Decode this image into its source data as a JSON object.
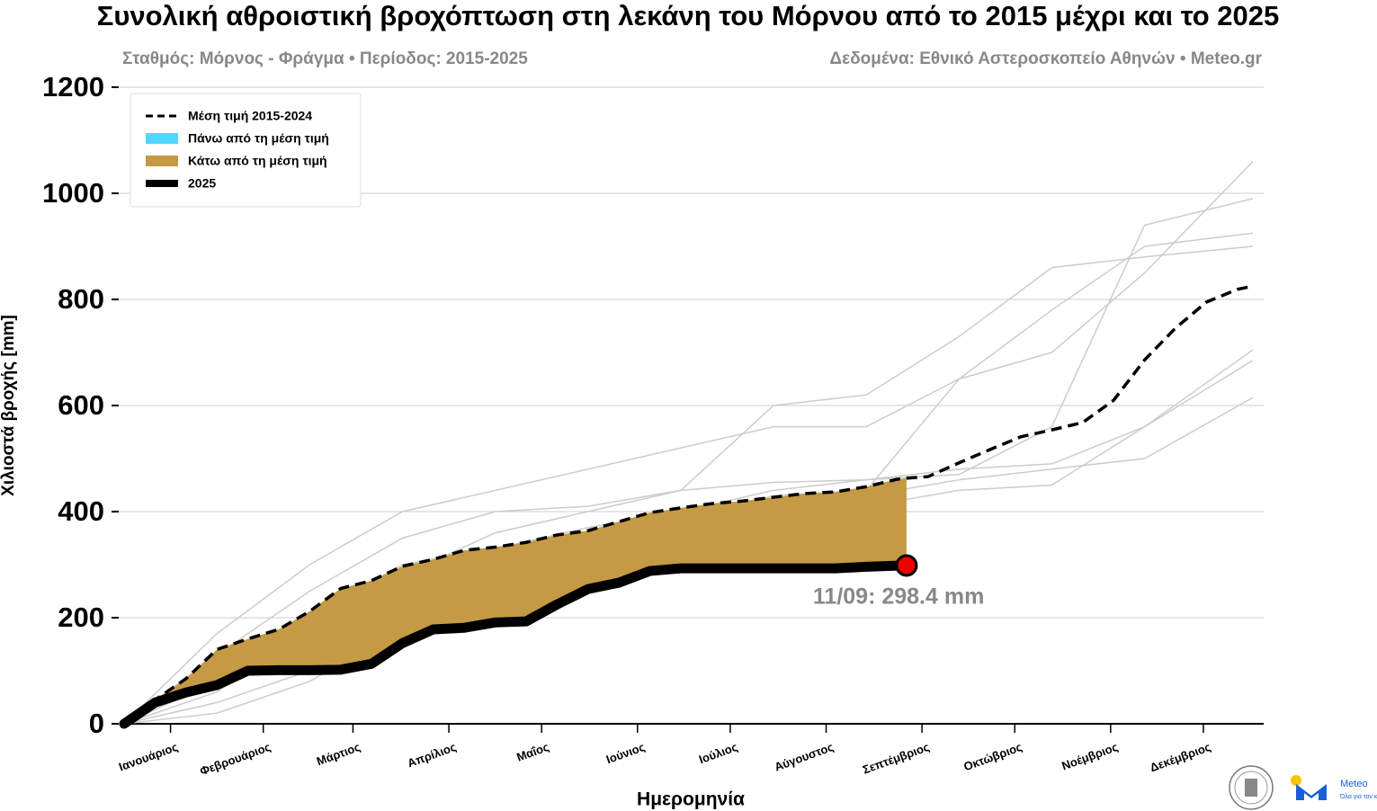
{
  "chart_data": {
    "type": "line",
    "title": "Συνολική αθροιστική βροχόπτωση στη λεκάνη του Μόρνου από το 2015 μέχρι και το 2025",
    "subtitle": "Σταθμός: Μόρνος - Φράγμα • Περίοδος: 2015-2025",
    "source": "Δεδομένα: Εθνικό Αστεροσκοπείο Αθηνών • Meteo.gr",
    "xlabel": "Ημερομηνία",
    "ylabel": "Χιλιοστά βροχής [mm]",
    "xlim": [
      0,
      365
    ],
    "ylim": [
      0,
      1200
    ],
    "xticks": [
      {
        "value": 15,
        "label": "Ιανουάριος"
      },
      {
        "value": 45,
        "label": "Φεβρουάριος"
      },
      {
        "value": 74,
        "label": "Μάρτιος"
      },
      {
        "value": 105,
        "label": "Απρίλιος"
      },
      {
        "value": 135,
        "label": "Μαΐος"
      },
      {
        "value": 166,
        "label": "Ιούνιος"
      },
      {
        "value": 196,
        "label": "Ιούλιος"
      },
      {
        "value": 227,
        "label": "Αύγουστος"
      },
      {
        "value": 258,
        "label": "Σεπτέμβριος"
      },
      {
        "value": 288,
        "label": "Οκτώβριος"
      },
      {
        "value": 319,
        "label": "Νοέμβριος"
      },
      {
        "value": 349,
        "label": "Δεκέμβριος"
      }
    ],
    "yticks": [
      0,
      200,
      400,
      600,
      800,
      1000,
      1200
    ],
    "grid": true,
    "legend": "upper left",
    "series": [
      {
        "name": "Μέση τιμή 2015-2024",
        "color": "#000000",
        "style": "dashed",
        "x": [
          0,
          10,
          20,
          30,
          40,
          50,
          60,
          70,
          80,
          90,
          100,
          110,
          120,
          130,
          140,
          150,
          160,
          170,
          180,
          190,
          200,
          210,
          220,
          230,
          240,
          250,
          253,
          260,
          270,
          280,
          290,
          300,
          310,
          320,
          330,
          340,
          350,
          360,
          365
        ],
        "values": [
          0,
          45,
          85,
          140,
          160,
          178,
          212,
          255,
          270,
          297,
          310,
          327,
          333,
          342,
          356,
          364,
          381,
          398,
          407,
          415,
          420,
          427,
          434,
          437,
          447,
          461,
          463,
          466,
          492,
          517,
          541,
          554,
          568,
          610,
          686,
          746,
          795,
          819,
          825
        ]
      },
      {
        "name": "2025",
        "color": "#000000",
        "style": "solid",
        "x": [
          0,
          10,
          20,
          30,
          40,
          50,
          60,
          70,
          80,
          90,
          100,
          110,
          120,
          130,
          140,
          150,
          160,
          170,
          180,
          190,
          200,
          210,
          220,
          230,
          240,
          250,
          253
        ],
        "values": [
          0,
          40,
          59,
          73,
          100,
          101,
          101,
          102,
          113,
          152,
          178,
          181,
          191,
          193,
          225,
          254,
          266,
          288,
          293,
          293,
          293,
          293,
          293,
          293,
          296,
          298,
          298.4
        ]
      }
    ],
    "fills": [
      {
        "name": "Πάνω από τη μέση τιμή",
        "color": "#4dd8ff"
      },
      {
        "name": "Κάτω από τη μέση τιμή",
        "color": "#c49a45"
      }
    ],
    "background_color": "#cccccc",
    "background_x": [
      0,
      30,
      60,
      90,
      120,
      150,
      180,
      210,
      240,
      270,
      300,
      330,
      365
    ],
    "background_series": [
      [
        0,
        170,
        300,
        400,
        440,
        480,
        520,
        560,
        560,
        650,
        700,
        850,
        1060
      ],
      [
        0,
        130,
        250,
        350,
        400,
        410,
        440,
        455,
        460,
        470,
        560,
        940,
        990
      ],
      [
        0,
        100,
        200,
        300,
        330,
        360,
        380,
        430,
        440,
        650,
        780,
        900,
        925
      ],
      [
        0,
        60,
        180,
        280,
        360,
        400,
        440,
        600,
        620,
        730,
        860,
        880,
        900
      ],
      [
        0,
        80,
        150,
        250,
        330,
        370,
        400,
        440,
        460,
        480,
        490,
        560,
        705
      ],
      [
        0,
        40,
        100,
        200,
        280,
        330,
        390,
        400,
        410,
        440,
        450,
        560,
        685
      ],
      [
        0,
        20,
        80,
        180,
        250,
        300,
        330,
        380,
        430,
        460,
        480,
        500,
        615
      ]
    ],
    "annotation": "11/09: 298.4 mm",
    "logo_text": "Meteo",
    "logo_subtext": "Όλα για τον καιρό"
  }
}
